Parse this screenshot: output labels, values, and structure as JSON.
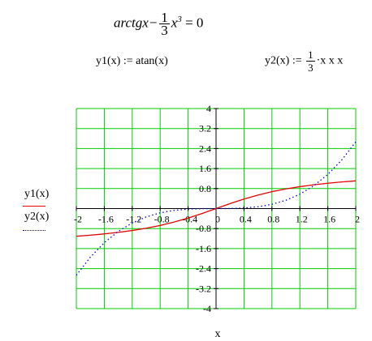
{
  "equation": {
    "fn_text": "arctgx",
    "minus": "−",
    "frac_num": "1",
    "frac_den": "3",
    "var": "x",
    "power": "3",
    "rhs": "= 0"
  },
  "definitions": {
    "y1": "y1(x) := atan(x)",
    "y2_prefix": "y2(x) :=",
    "y2_frac_num": "1",
    "y2_frac_den": "3",
    "y2_suffix": "·x x x"
  },
  "legend": {
    "y1_label": "y1(x)",
    "y2_label": "y2(x)",
    "y1_color": "#e00000",
    "y2_color": "#0000cc"
  },
  "colors": {
    "grid": "#00cc00",
    "axis": "#000000"
  },
  "chart_data": {
    "type": "line",
    "xlabel": "x",
    "ylabel": "",
    "xlim": [
      -2,
      2
    ],
    "ylim": [
      -4,
      4
    ],
    "grid": true,
    "x_ticks": [
      "-2",
      "-1.6",
      "-1.2",
      "-0.8",
      "-0.4",
      "0",
      "0.4",
      "0.8",
      "1.2",
      "1.6",
      "2"
    ],
    "y_ticks": [
      "4",
      "3.2",
      "2.4",
      "1.6",
      "0.8",
      "-0.8",
      "-1.6",
      "-2.4",
      "-3.2",
      "-4"
    ],
    "x": [
      -2,
      -1.8,
      -1.6,
      -1.4,
      -1.2,
      -1.0,
      -0.8,
      -0.6,
      -0.4,
      -0.2,
      0,
      0.2,
      0.4,
      0.6,
      0.8,
      1.0,
      1.2,
      1.4,
      1.6,
      1.8,
      2.0
    ],
    "series": [
      {
        "name": "y1(x)",
        "style": "solid",
        "values": [
          -1.107,
          -1.064,
          -1.012,
          -0.951,
          -0.876,
          -0.785,
          -0.675,
          -0.54,
          -0.381,
          -0.197,
          0,
          0.197,
          0.381,
          0.54,
          0.675,
          0.785,
          0.876,
          0.951,
          1.012,
          1.064,
          1.107
        ]
      },
      {
        "name": "y2(x)",
        "style": "dotted",
        "values": [
          -2.667,
          -1.944,
          -1.365,
          -0.915,
          -0.576,
          -0.333,
          -0.171,
          -0.072,
          -0.021,
          -0.003,
          0,
          0.003,
          0.021,
          0.072,
          0.171,
          0.333,
          0.576,
          0.915,
          1.365,
          1.944,
          2.667
        ]
      }
    ]
  }
}
